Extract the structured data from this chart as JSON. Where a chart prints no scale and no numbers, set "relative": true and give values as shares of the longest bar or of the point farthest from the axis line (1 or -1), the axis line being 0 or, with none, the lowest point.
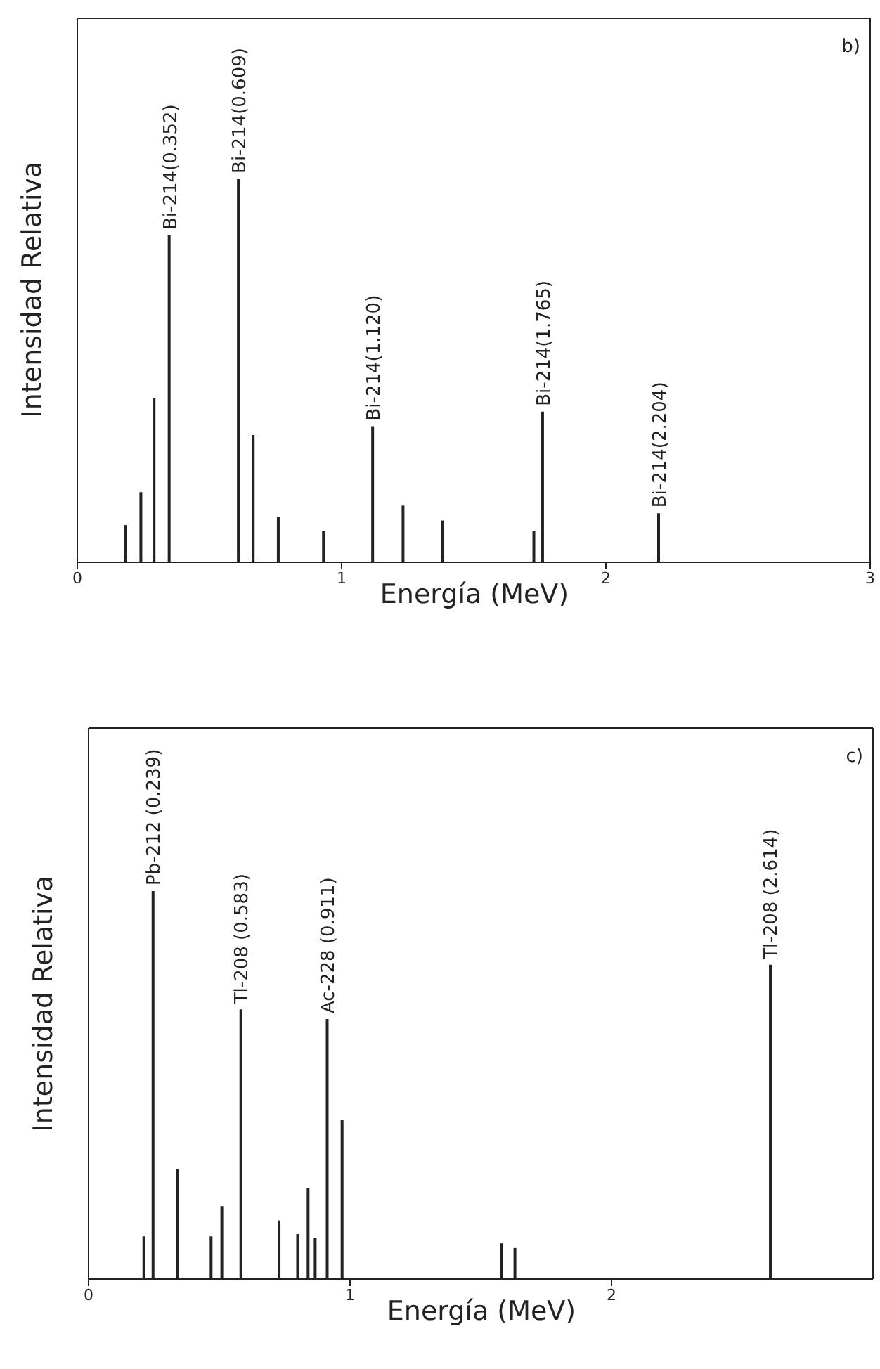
{
  "chart_data": [
    {
      "type": "bar",
      "title": "b)",
      "xlabel": "Energía (MeV)",
      "ylabel": "Intensidad Relativa",
      "relative": true,
      "color": "#222222",
      "x": [
        0.184,
        0.241,
        0.291,
        0.348,
        0.61,
        0.666,
        0.761,
        0.932,
        1.118,
        1.233,
        1.381,
        1.728,
        1.761,
        2.2
      ],
      "values": [
        0.097,
        0.183,
        0.428,
        0.853,
        1.0,
        0.332,
        0.118,
        0.081,
        0.355,
        0.148,
        0.109,
        0.081,
        0.393,
        0.128
      ],
      "xlim": [
        0,
        3
      ],
      "xticks": [
        0,
        1,
        2,
        3
      ],
      "annotations": [
        {
          "text": "Bi-214(0.352)",
          "x": 0.348,
          "y": 0.853
        },
        {
          "text": "Bi-214(0.609)",
          "x": 0.61,
          "y": 1.0
        },
        {
          "text": "Bi-214(1.120)",
          "x": 1.118,
          "y": 0.355
        },
        {
          "text": "Bi-214(1.765)",
          "x": 1.761,
          "y": 0.393
        },
        {
          "text": "Bi-214(2.204)",
          "x": 2.2,
          "y": 0.128
        }
      ]
    },
    {
      "type": "bar",
      "title": "c)",
      "xlabel": "Energía (MeV)",
      "ylabel": "Intensidad Relativa",
      "relative": true,
      "color": "#222222",
      "x": [
        0.209,
        0.244,
        0.338,
        0.466,
        0.507,
        0.58,
        0.726,
        0.797,
        0.837,
        0.864,
        0.91,
        0.967,
        1.578,
        1.628,
        2.605
      ],
      "values": [
        0.11,
        1.0,
        0.283,
        0.11,
        0.188,
        0.695,
        0.151,
        0.116,
        0.234,
        0.105,
        0.67,
        0.41,
        0.092,
        0.08,
        0.81
      ],
      "xlim": [
        0,
        3
      ],
      "xticks": [
        0,
        1,
        2
      ],
      "annotations": [
        {
          "text": "Pb-212 (0.239)",
          "x": 0.244,
          "y": 1.0
        },
        {
          "text": "Tl-208 (0.583)",
          "x": 0.58,
          "y": 0.695
        },
        {
          "text": "Ac-228 (0.911)",
          "x": 0.91,
          "y": 0.67
        },
        {
          "text": "Tl-208 (2.614)",
          "x": 2.605,
          "y": 0.81
        }
      ]
    }
  ]
}
